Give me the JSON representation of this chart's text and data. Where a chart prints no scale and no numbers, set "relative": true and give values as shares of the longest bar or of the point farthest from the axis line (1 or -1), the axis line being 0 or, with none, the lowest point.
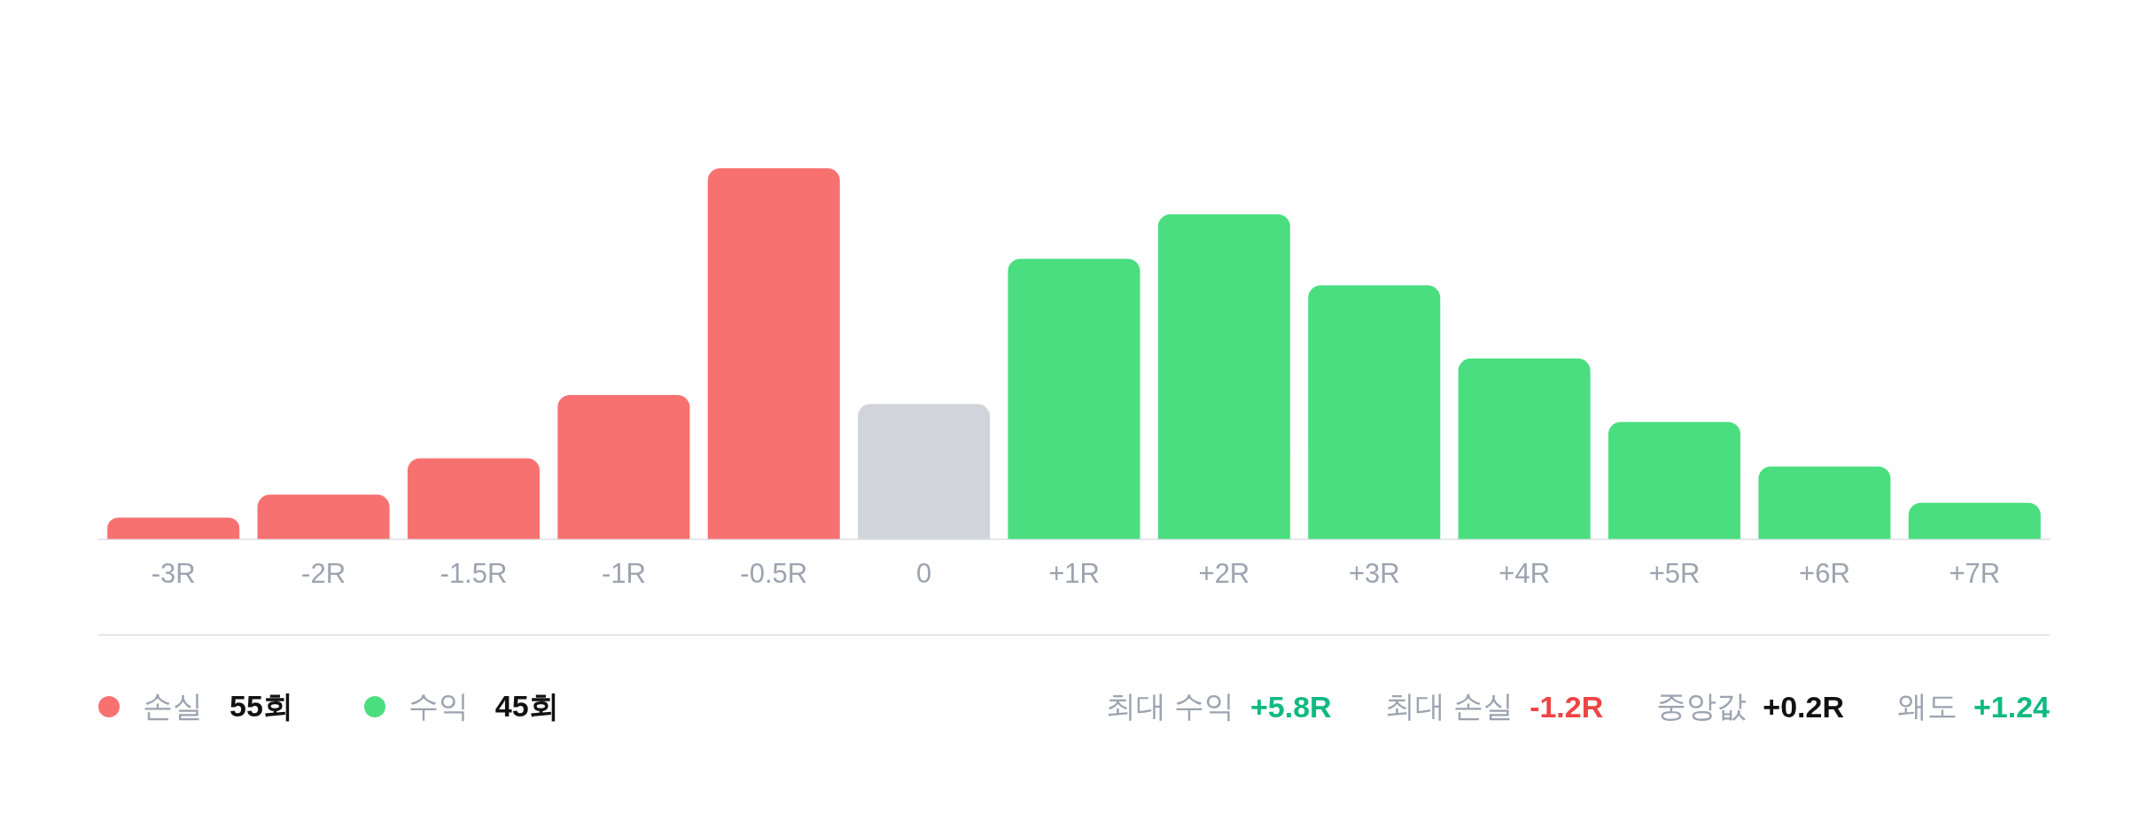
{
  "chart_data": {
    "type": "bar",
    "relative": true,
    "stacked": true,
    "legend": "bottom left",
    "categories": [
      "-3R",
      "-2R",
      "-1.5R",
      "-1R",
      "-0.5R",
      "0",
      "+1R",
      "+2R",
      "+3R",
      "+4R",
      "+5R",
      "+6R",
      "+7R"
    ],
    "series": [
      {
        "name": "손실",
        "color": "#f87171",
        "values": [
          0.058,
          0.12,
          0.218,
          0.389,
          1,
          null,
          null,
          null,
          null,
          null,
          null,
          null,
          null
        ]
      },
      {
        "color": "#d1d5db",
        "values": [
          null,
          null,
          null,
          null,
          null,
          0.364,
          null,
          null,
          null,
          null,
          null,
          null,
          null
        ]
      },
      {
        "name": "수익",
        "color": "#4ade80",
        "values": [
          null,
          null,
          null,
          null,
          null,
          null,
          0.756,
          0.876,
          0.684,
          0.487,
          0.316,
          0.196,
          0.098
        ]
      }
    ],
    "annotations": [
      "55회",
      "45회",
      "최대 수익",
      "+5.8R",
      "최대 손실",
      "-1.2R",
      "중앙값",
      "+0.2R",
      "왜도",
      "+1.24"
    ]
  }
}
